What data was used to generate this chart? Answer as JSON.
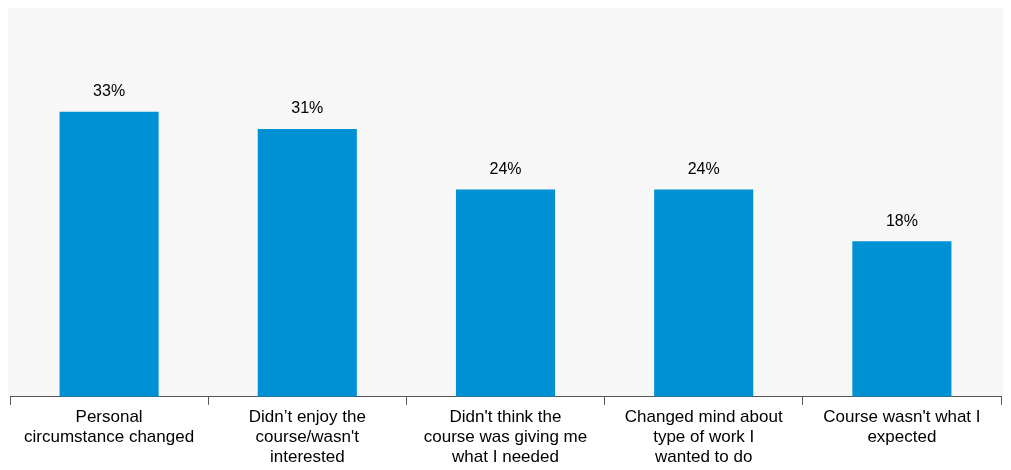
{
  "chart_data": {
    "type": "bar",
    "categories": [
      "Personal circumstance changed",
      "Didn’t enjoy the course/wasn't interested",
      "Didn't think the course was giving me what I needed",
      "Changed mind about type of work I wanted to do",
      "Course wasn't what I expected"
    ],
    "values": [
      33,
      31,
      24,
      24,
      18
    ],
    "color": "#0091d5",
    "value_labels": [
      "33%",
      "31%",
      "24%",
      "24%",
      "18%"
    ]
  }
}
